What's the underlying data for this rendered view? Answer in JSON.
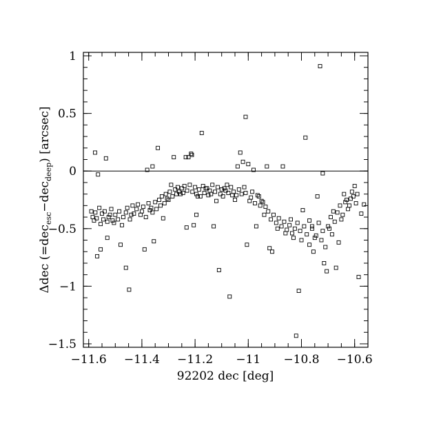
{
  "chart_data": {
    "type": "scatter",
    "title": "",
    "xlabel": "92202 dec [deg]",
    "ylabel": {
      "prefix": "Δdec (=dec",
      "sub1": "esc",
      "mid": "−dec",
      "sub2": "deep",
      "suffix": ") [arcsec]"
    },
    "xlim": [
      -11.62,
      -10.55
    ],
    "ylim": [
      -1.53,
      1.03
    ],
    "x_ticks": [
      -11.6,
      -11.4,
      -11.2,
      -11,
      -10.8,
      -10.6
    ],
    "x_tick_labels": [
      "−11.6",
      "−11.4",
      "−11.2",
      "−11",
      "−10.8",
      "−10.6"
    ],
    "y_ticks": [
      1,
      0.5,
      0,
      -0.5,
      -1,
      -1.5
    ],
    "y_tick_labels": [
      "1",
      "0.5",
      "0",
      "−0.5",
      "−1",
      "−1.5"
    ],
    "reference_line_y": 0,
    "marker": "open-square",
    "points": [
      [
        -11.576,
        0.16
      ],
      [
        -11.535,
        0.11
      ],
      [
        -11.565,
        -0.03
      ],
      [
        -11.568,
        -0.74
      ],
      [
        -11.555,
        -0.68
      ],
      [
        -11.52,
        -0.38
      ],
      [
        -11.51,
        -0.43
      ],
      [
        -11.53,
        -0.58
      ],
      [
        -11.48,
        -0.64
      ],
      [
        -11.46,
        -0.84
      ],
      [
        -11.448,
        -1.03
      ],
      [
        -11.44,
        -0.38
      ],
      [
        -11.39,
        -0.68
      ],
      [
        -11.38,
        0.01
      ],
      [
        -11.36,
        0.04
      ],
      [
        -11.355,
        -0.61
      ],
      [
        -11.34,
        0.2
      ],
      [
        -11.32,
        -0.41
      ],
      [
        -11.3,
        -0.25
      ],
      [
        -11.29,
        -0.12
      ],
      [
        -11.28,
        0.12
      ],
      [
        -11.255,
        -0.2
      ],
      [
        -11.235,
        0.12
      ],
      [
        -11.225,
        0.12
      ],
      [
        -11.215,
        0.15
      ],
      [
        -11.212,
        0.14
      ],
      [
        -11.232,
        -0.49
      ],
      [
        -11.205,
        -0.47
      ],
      [
        -11.195,
        -0.38
      ],
      [
        -11.19,
        -0.22
      ],
      [
        -11.175,
        0.33
      ],
      [
        -11.16,
        -0.15
      ],
      [
        -11.14,
        -0.2
      ],
      [
        -11.13,
        -0.48
      ],
      [
        -11.12,
        -0.26
      ],
      [
        -11.11,
        -0.86
      ],
      [
        -11.09,
        -0.15
      ],
      [
        -11.07,
        -1.09
      ],
      [
        -11.06,
        -0.21
      ],
      [
        -11.04,
        0.04
      ],
      [
        -11.03,
        0.16
      ],
      [
        -11.02,
        0.08
      ],
      [
        -11.01,
        0.47
      ],
      [
        -11.0,
        0.06
      ],
      [
        -11.005,
        -0.64
      ],
      [
        -10.99,
        -0.23
      ],
      [
        -10.98,
        0.01
      ],
      [
        -10.97,
        -0.48
      ],
      [
        -10.96,
        -0.22
      ],
      [
        -10.95,
        -0.26
      ],
      [
        -10.94,
        -0.38
      ],
      [
        -10.93,
        0.04
      ],
      [
        -10.92,
        -0.67
      ],
      [
        -10.91,
        -0.7
      ],
      [
        -10.89,
        -0.5
      ],
      [
        -10.87,
        0.04
      ],
      [
        -10.86,
        -0.54
      ],
      [
        -10.84,
        -0.42
      ],
      [
        -10.83,
        -0.58
      ],
      [
        -10.82,
        -1.43
      ],
      [
        -10.81,
        -1.04
      ],
      [
        -10.795,
        -0.34
      ],
      [
        -10.785,
        0.29
      ],
      [
        -10.77,
        -0.43
      ],
      [
        -10.76,
        -0.48
      ],
      [
        -10.75,
        -0.58
      ],
      [
        -10.74,
        -0.22
      ],
      [
        -10.73,
        0.91
      ],
      [
        -10.72,
        -0.02
      ],
      [
        -10.715,
        -0.8
      ],
      [
        -10.705,
        -0.87
      ],
      [
        -10.695,
        -0.5
      ],
      [
        -10.68,
        -0.35
      ],
      [
        -10.67,
        -0.84
      ],
      [
        -10.66,
        -0.62
      ],
      [
        -10.65,
        -0.42
      ],
      [
        -10.64,
        -0.2
      ],
      [
        -10.63,
        -0.25
      ],
      [
        -10.62,
        -0.3
      ],
      [
        -10.61,
        -0.18
      ],
      [
        -10.6,
        -0.13
      ],
      [
        -10.59,
        -0.2
      ],
      [
        -10.585,
        -0.92
      ],
      [
        -10.575,
        -0.37
      ],
      [
        -10.565,
        -0.29
      ],
      [
        -11.59,
        -0.35
      ],
      [
        -11.585,
        -0.4
      ],
      [
        -11.58,
        -0.43
      ],
      [
        -11.575,
        -0.36
      ],
      [
        -11.57,
        -0.41
      ],
      [
        -11.56,
        -0.32
      ],
      [
        -11.555,
        -0.46
      ],
      [
        -11.55,
        -0.37
      ],
      [
        -11.545,
        -0.42
      ],
      [
        -11.54,
        -0.35
      ],
      [
        -11.53,
        -0.44
      ],
      [
        -11.525,
        -0.4
      ],
      [
        -11.515,
        -0.33
      ],
      [
        -11.505,
        -0.45
      ],
      [
        -11.5,
        -0.38
      ],
      [
        -11.49,
        -0.42
      ],
      [
        -11.485,
        -0.35
      ],
      [
        -11.475,
        -0.47
      ],
      [
        -11.47,
        -0.4
      ],
      [
        -11.46,
        -0.36
      ],
      [
        -11.455,
        -0.32
      ],
      [
        -11.445,
        -0.42
      ],
      [
        -11.435,
        -0.3
      ],
      [
        -11.43,
        -0.37
      ],
      [
        -11.42,
        -0.33
      ],
      [
        -11.415,
        -0.29
      ],
      [
        -11.405,
        -0.38
      ],
      [
        -11.4,
        -0.35
      ],
      [
        -11.395,
        -0.31
      ],
      [
        -11.385,
        -0.4
      ],
      [
        -11.375,
        -0.28
      ],
      [
        -11.37,
        -0.34
      ],
      [
        -11.365,
        -0.32
      ],
      [
        -11.36,
        -0.36
      ],
      [
        -11.35,
        -0.27
      ],
      [
        -11.345,
        -0.33
      ],
      [
        -11.335,
        -0.25
      ],
      [
        -11.33,
        -0.3
      ],
      [
        -11.325,
        -0.22
      ],
      [
        -11.315,
        -0.28
      ],
      [
        -11.31,
        -0.2
      ],
      [
        -11.305,
        -0.24
      ],
      [
        -11.295,
        -0.18
      ],
      [
        -11.285,
        -0.22
      ],
      [
        -11.275,
        -0.16
      ],
      [
        -11.27,
        -0.2
      ],
      [
        -11.265,
        -0.14
      ],
      [
        -11.26,
        -0.18
      ],
      [
        -11.25,
        -0.15
      ],
      [
        -11.245,
        -0.19
      ],
      [
        -11.24,
        -0.13
      ],
      [
        -11.23,
        -0.17
      ],
      [
        -11.22,
        -0.12
      ],
      [
        -11.21,
        -0.18
      ],
      [
        -11.2,
        -0.14
      ],
      [
        -11.195,
        -0.2
      ],
      [
        -11.185,
        -0.16
      ],
      [
        -11.18,
        -0.22
      ],
      [
        -11.17,
        -0.13
      ],
      [
        -11.165,
        -0.19
      ],
      [
        -11.155,
        -0.15
      ],
      [
        -11.15,
        -0.21
      ],
      [
        -11.145,
        -0.17
      ],
      [
        -11.135,
        -0.12
      ],
      [
        -11.125,
        -0.18
      ],
      [
        -11.115,
        -0.14
      ],
      [
        -11.105,
        -0.2
      ],
      [
        -11.1,
        -0.16
      ],
      [
        -11.095,
        -0.22
      ],
      [
        -11.085,
        -0.17
      ],
      [
        -11.08,
        -0.12
      ],
      [
        -11.075,
        -0.19
      ],
      [
        -11.065,
        -0.14
      ],
      [
        -11.055,
        -0.18
      ],
      [
        -11.05,
        -0.25
      ],
      [
        -11.045,
        -0.21
      ],
      [
        -11.035,
        -0.16
      ],
      [
        -11.025,
        -0.2
      ],
      [
        -11.015,
        -0.14
      ],
      [
        -11.01,
        -0.19
      ],
      [
        -10.995,
        -0.26
      ],
      [
        -10.985,
        -0.18
      ],
      [
        -10.975,
        -0.28
      ],
      [
        -10.965,
        -0.21
      ],
      [
        -10.955,
        -0.3
      ],
      [
        -10.945,
        -0.27
      ],
      [
        -10.935,
        -0.31
      ],
      [
        -10.925,
        -0.35
      ],
      [
        -10.915,
        -0.42
      ],
      [
        -10.905,
        -0.38
      ],
      [
        -10.895,
        -0.45
      ],
      [
        -10.885,
        -0.41
      ],
      [
        -10.875,
        -0.48
      ],
      [
        -10.865,
        -0.44
      ],
      [
        -10.855,
        -0.51
      ],
      [
        -10.845,
        -0.47
      ],
      [
        -10.835,
        -0.54
      ],
      [
        -10.825,
        -0.5
      ],
      [
        -10.815,
        -0.45
      ],
      [
        -10.805,
        -0.52
      ],
      [
        -10.8,
        -0.6
      ],
      [
        -10.79,
        -0.48
      ],
      [
        -10.78,
        -0.55
      ],
      [
        -10.77,
        -0.64
      ],
      [
        -10.76,
        -0.5
      ],
      [
        -10.755,
        -0.7
      ],
      [
        -10.745,
        -0.56
      ],
      [
        -10.735,
        -0.45
      ],
      [
        -10.725,
        -0.6
      ],
      [
        -10.72,
        -0.52
      ],
      [
        -10.71,
        -0.66
      ],
      [
        -10.7,
        -0.48
      ],
      [
        -10.69,
        -0.4
      ],
      [
        -10.685,
        -0.55
      ],
      [
        -10.675,
        -0.44
      ],
      [
        -10.665,
        -0.36
      ],
      [
        -10.655,
        -0.3
      ],
      [
        -10.645,
        -0.38
      ],
      [
        -10.635,
        -0.27
      ],
      [
        -10.625,
        -0.33
      ],
      [
        -10.615,
        -0.24
      ],
      [
        -10.605,
        -0.22
      ],
      [
        -10.595,
        -0.28
      ]
    ]
  }
}
